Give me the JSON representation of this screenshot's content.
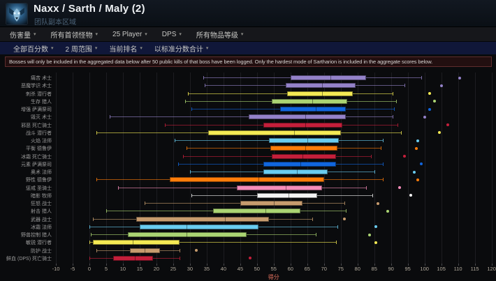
{
  "header": {
    "title": "Naxx / Sarth / Maly (2)",
    "subtitle": "团队副本区域"
  },
  "filters": {
    "caret": "▾",
    "primary": [
      {
        "label": "伤害量"
      },
      {
        "label": "所有首领怪物"
      },
      {
        "label": "25 Player"
      },
      {
        "label": "DPS"
      },
      {
        "label": "所有物品等级"
      }
    ],
    "secondary": [
      {
        "label": "全部百分数"
      },
      {
        "label": "2 周范围"
      },
      {
        "label": "当前排名"
      },
      {
        "label": "以标准分数合计"
      }
    ]
  },
  "notice": "Bosses will only be included in the aggregated data below after 50 public kills of that boss have been logged. Only the hardest mode of Sartharion is included in the aggregate scores below.",
  "chart_data": {
    "type": "boxplot",
    "orientation": "horizontal",
    "xlabel": "得分",
    "xlim": [
      -12,
      122
    ],
    "x_ticks": [
      -10,
      -5,
      0,
      5,
      10,
      15,
      20,
      25,
      30,
      35,
      40,
      45,
      50,
      55,
      60,
      65,
      70,
      75,
      80,
      85,
      90,
      95,
      100,
      105,
      110,
      115,
      120
    ],
    "grid": true,
    "class_colors": {
      "warlock": "#9482C9",
      "rogue": "#F4EA54",
      "hunter": "#ABD473",
      "shaman": "#1166DE",
      "deathknight": "#C41F3B",
      "mage": "#69CCF0",
      "druid": "#FF7D0A",
      "paladin": "#F58CBA",
      "priest": "#F4F4F4",
      "warrior": "#C79C6E"
    },
    "rows": [
      {
        "label": "痛苦 术士",
        "cls": "warlock",
        "low": 34,
        "q1": 60,
        "median": 72,
        "q3": 82.5,
        "high": 99,
        "outliers": [
          110.5
        ]
      },
      {
        "label": "恶魔学识 术士",
        "cls": "warlock",
        "low": 34.5,
        "q1": 58.5,
        "median": 69.5,
        "q3": 79.5,
        "high": 94,
        "outliers": [
          105
        ]
      },
      {
        "label": "刺杀 潜行者",
        "cls": "rogue",
        "low": 29.5,
        "q1": 59,
        "median": 69.5,
        "q3": 78.5,
        "high": 90.5,
        "outliers": [
          101.5
        ]
      },
      {
        "label": "生存 猎人",
        "cls": "hunter",
        "low": 28.5,
        "q1": 54.5,
        "median": 66.5,
        "q3": 77,
        "high": 91.5,
        "outliers": [
          103
        ]
      },
      {
        "label": "增强 萨满祭司",
        "cls": "shaman",
        "low": 30.5,
        "q1": 57,
        "median": 67.5,
        "q3": 76.5,
        "high": 91,
        "outliers": [
          101.5
        ]
      },
      {
        "label": "毁灭 术士",
        "cls": "warlock",
        "low": 6,
        "q1": 47.5,
        "median": 64.5,
        "q3": 76.5,
        "high": 90.5,
        "outliers": [
          100
        ]
      },
      {
        "label": "邪恶 死亡骑士",
        "cls": "deathknight",
        "low": 22.5,
        "q1": 52,
        "median": 64.5,
        "q3": 75.5,
        "high": 92,
        "outliers": [
          107
        ]
      },
      {
        "label": "战斗 潜行者",
        "cls": "rogue",
        "low": 2,
        "q1": 35.5,
        "median": 61,
        "q3": 75,
        "high": 93,
        "outliers": [
          104.5
        ]
      },
      {
        "label": "火焰 法师",
        "cls": "mage",
        "low": 25.5,
        "q1": 53.5,
        "median": 65,
        "q3": 74.5,
        "high": 87.5,
        "outliers": [
          98
        ]
      },
      {
        "label": "平衡 德鲁伊",
        "cls": "druid",
        "low": 29,
        "q1": 54,
        "median": 64.5,
        "q3": 74,
        "high": 87,
        "outliers": [
          97.5
        ]
      },
      {
        "label": "冰霜 死亡骑士",
        "cls": "deathknight",
        "low": 28,
        "q1": 54.5,
        "median": 63.5,
        "q3": 73.5,
        "high": 84,
        "outliers": [
          94
        ]
      },
      {
        "label": "元素 萨满祭司",
        "cls": "shaman",
        "low": 26.5,
        "q1": 52,
        "median": 63,
        "q3": 73.5,
        "high": 87.5,
        "outliers": [
          99
        ]
      },
      {
        "label": "奥术 法师",
        "cls": "mage",
        "low": 30,
        "q1": 52,
        "median": 62,
        "q3": 71,
        "high": 85,
        "outliers": [
          97
        ]
      },
      {
        "label": "野性 德鲁伊",
        "cls": "druid",
        "low": 2,
        "q1": 24,
        "median": 50.5,
        "q3": 70,
        "high": 87.5,
        "outliers": [
          98
        ]
      },
      {
        "label": "惩戒 圣骑士",
        "cls": "paladin",
        "low": 8.5,
        "q1": 44,
        "median": 58.5,
        "q3": 69.5,
        "high": 82.5,
        "outliers": [
          92.5
        ]
      },
      {
        "label": "暗影 牧师",
        "cls": "priest",
        "low": 30.5,
        "q1": 50,
        "median": 59.5,
        "q3": 68,
        "high": 84.5,
        "outliers": [
          96
        ]
      },
      {
        "label": "狂怒 战士",
        "cls": "warrior",
        "low": 16.5,
        "q1": 45,
        "median": 55,
        "q3": 63.5,
        "high": 76,
        "outliers": [
          86
        ]
      },
      {
        "label": "射击 猎人",
        "cls": "hunter",
        "low": 5,
        "q1": 37,
        "median": 52.5,
        "q3": 63,
        "high": 76.5,
        "outliers": [
          89
        ]
      },
      {
        "label": "武器 战士",
        "cls": "warrior",
        "low": 1,
        "q1": 14,
        "median": 40.5,
        "q3": 53.5,
        "high": 66.5,
        "outliers": [
          76
        ]
      },
      {
        "label": "冰霜 法师",
        "cls": "mage",
        "low": 0,
        "q1": 15,
        "median": 29,
        "q3": 50.5,
        "high": 74,
        "outliers": [
          85.5
        ]
      },
      {
        "label": "野兽控制 猎人",
        "cls": "hunter",
        "low": 0.5,
        "q1": 11.5,
        "median": 29,
        "q3": 47,
        "high": 67.5,
        "outliers": [
          83.5
        ]
      },
      {
        "label": "敏锐 潜行者",
        "cls": "rogue",
        "low": 0,
        "q1": 1,
        "median": 13,
        "q3": 27,
        "high": 73.5,
        "outliers": [
          85.5
        ]
      },
      {
        "label": "防护 战士",
        "cls": "warrior",
        "low": 2,
        "q1": 12,
        "median": 16.5,
        "q3": 21,
        "high": 27,
        "outliers": [
          32
        ]
      },
      {
        "label": "鲜血 (DPS) 死亡骑士",
        "cls": "deathknight",
        "low": 0,
        "q1": 7,
        "median": 13.5,
        "q3": 19,
        "high": 27,
        "outliers": [
          48
        ]
      }
    ]
  }
}
